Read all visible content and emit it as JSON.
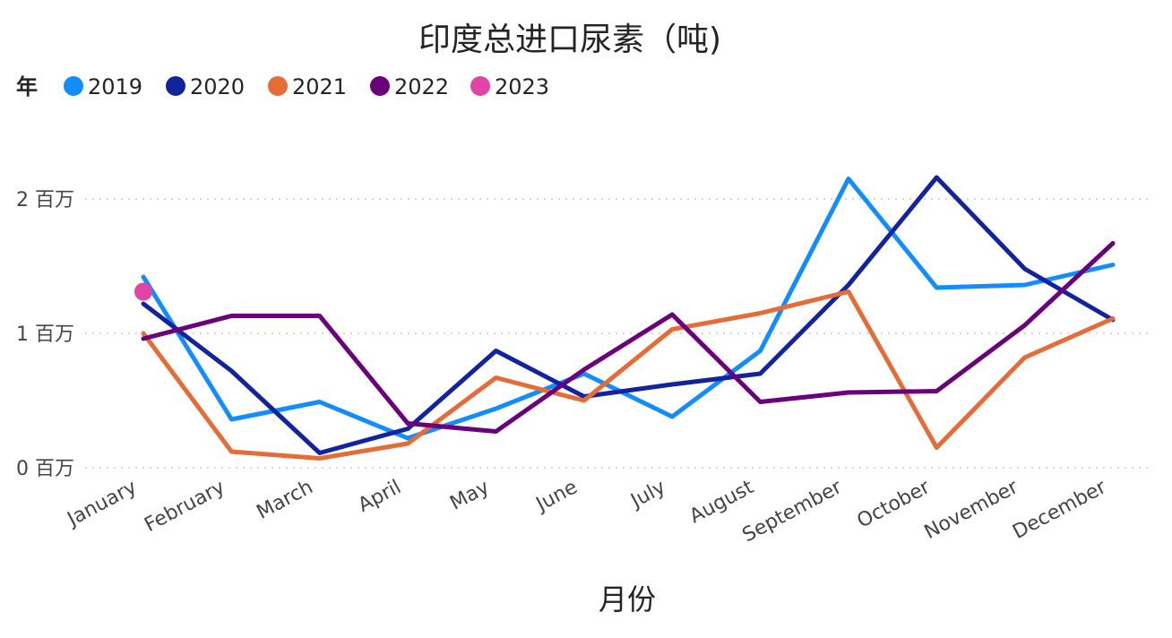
{
  "chart_data": {
    "type": "line",
    "title": "印度总进口尿素（吨)",
    "legend_title": "年",
    "legend_position": "top-left",
    "xlabel": "月份",
    "ylabel": "",
    "grid": true,
    "ylim": [
      0,
      2300000
    ],
    "y_ticks": [
      {
        "value": 0,
        "label": "0 百万"
      },
      {
        "value": 1000000,
        "label": "1 百万"
      },
      {
        "value": 2000000,
        "label": "2 百万"
      }
    ],
    "categories": [
      "January",
      "February",
      "March",
      "April",
      "May",
      "June",
      "July",
      "August",
      "September",
      "October",
      "November",
      "December"
    ],
    "series": [
      {
        "name": "2019",
        "color": "#118dff",
        "values": [
          1420000,
          360000,
          490000,
          220000,
          440000,
          700000,
          380000,
          870000,
          2150000,
          1340000,
          1360000,
          1510000
        ]
      },
      {
        "name": "2020",
        "color": "#12239e",
        "values": [
          1220000,
          720000,
          110000,
          290000,
          870000,
          530000,
          620000,
          700000,
          1360000,
          2160000,
          1480000,
          1100000
        ]
      },
      {
        "name": "2021",
        "color": "#e66c37",
        "values": [
          1000000,
          120000,
          70000,
          180000,
          670000,
          500000,
          1030000,
          1150000,
          1310000,
          150000,
          820000,
          1110000
        ]
      },
      {
        "name": "2022",
        "color": "#6b007b",
        "values": [
          960000,
          1130000,
          1130000,
          330000,
          270000,
          730000,
          1140000,
          490000,
          560000,
          570000,
          1060000,
          1670000
        ]
      },
      {
        "name": "2023",
        "color": "#e044a7",
        "values": [
          1310000,
          null,
          null,
          null,
          null,
          null,
          null,
          null,
          null,
          null,
          null,
          null
        ]
      }
    ]
  }
}
